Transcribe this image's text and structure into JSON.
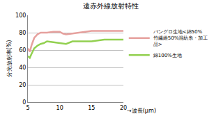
{
  "chart_data": {
    "type": "line",
    "title": "遠赤外線放射特性",
    "x_label": "→波長(μm)",
    "y_label": "分光放射率(%)",
    "xlim": [
      5,
      20
    ],
    "xticks": [
      5,
      10,
      15,
      20
    ],
    "ylim": [
      0,
      100
    ],
    "yticks": [
      0,
      20,
      40,
      60,
      80,
      100
    ],
    "grid": true,
    "legend": "right",
    "series": [
      {
        "name": "バングロ生地<綿50% 竹繊維50%混紡糸・加工品>",
        "color": "#e6a19e",
        "x": [
          5,
          5.3,
          5.6,
          6,
          6.5,
          7,
          7.5,
          8,
          9,
          10,
          10.5,
          11,
          12,
          13,
          14,
          15,
          16,
          17,
          18,
          19,
          20
        ],
        "values": [
          62,
          58,
          66,
          74,
          78,
          80,
          80,
          80,
          81,
          81,
          79,
          78,
          79,
          80,
          81,
          82,
          82,
          82,
          82,
          82,
          82
        ]
      },
      {
        "name": "綿100%生地",
        "color": "#92d050",
        "x": [
          5,
          5.3,
          5.6,
          6,
          6.5,
          7,
          7.5,
          8,
          9,
          10,
          10.5,
          11,
          12,
          13,
          14,
          15,
          16,
          17,
          18,
          19,
          20
        ],
        "values": [
          53,
          51,
          56,
          62,
          65,
          67,
          68,
          70,
          69,
          68,
          67,
          67,
          70,
          70,
          70,
          70,
          71,
          72,
          72,
          72,
          72
        ]
      }
    ]
  }
}
